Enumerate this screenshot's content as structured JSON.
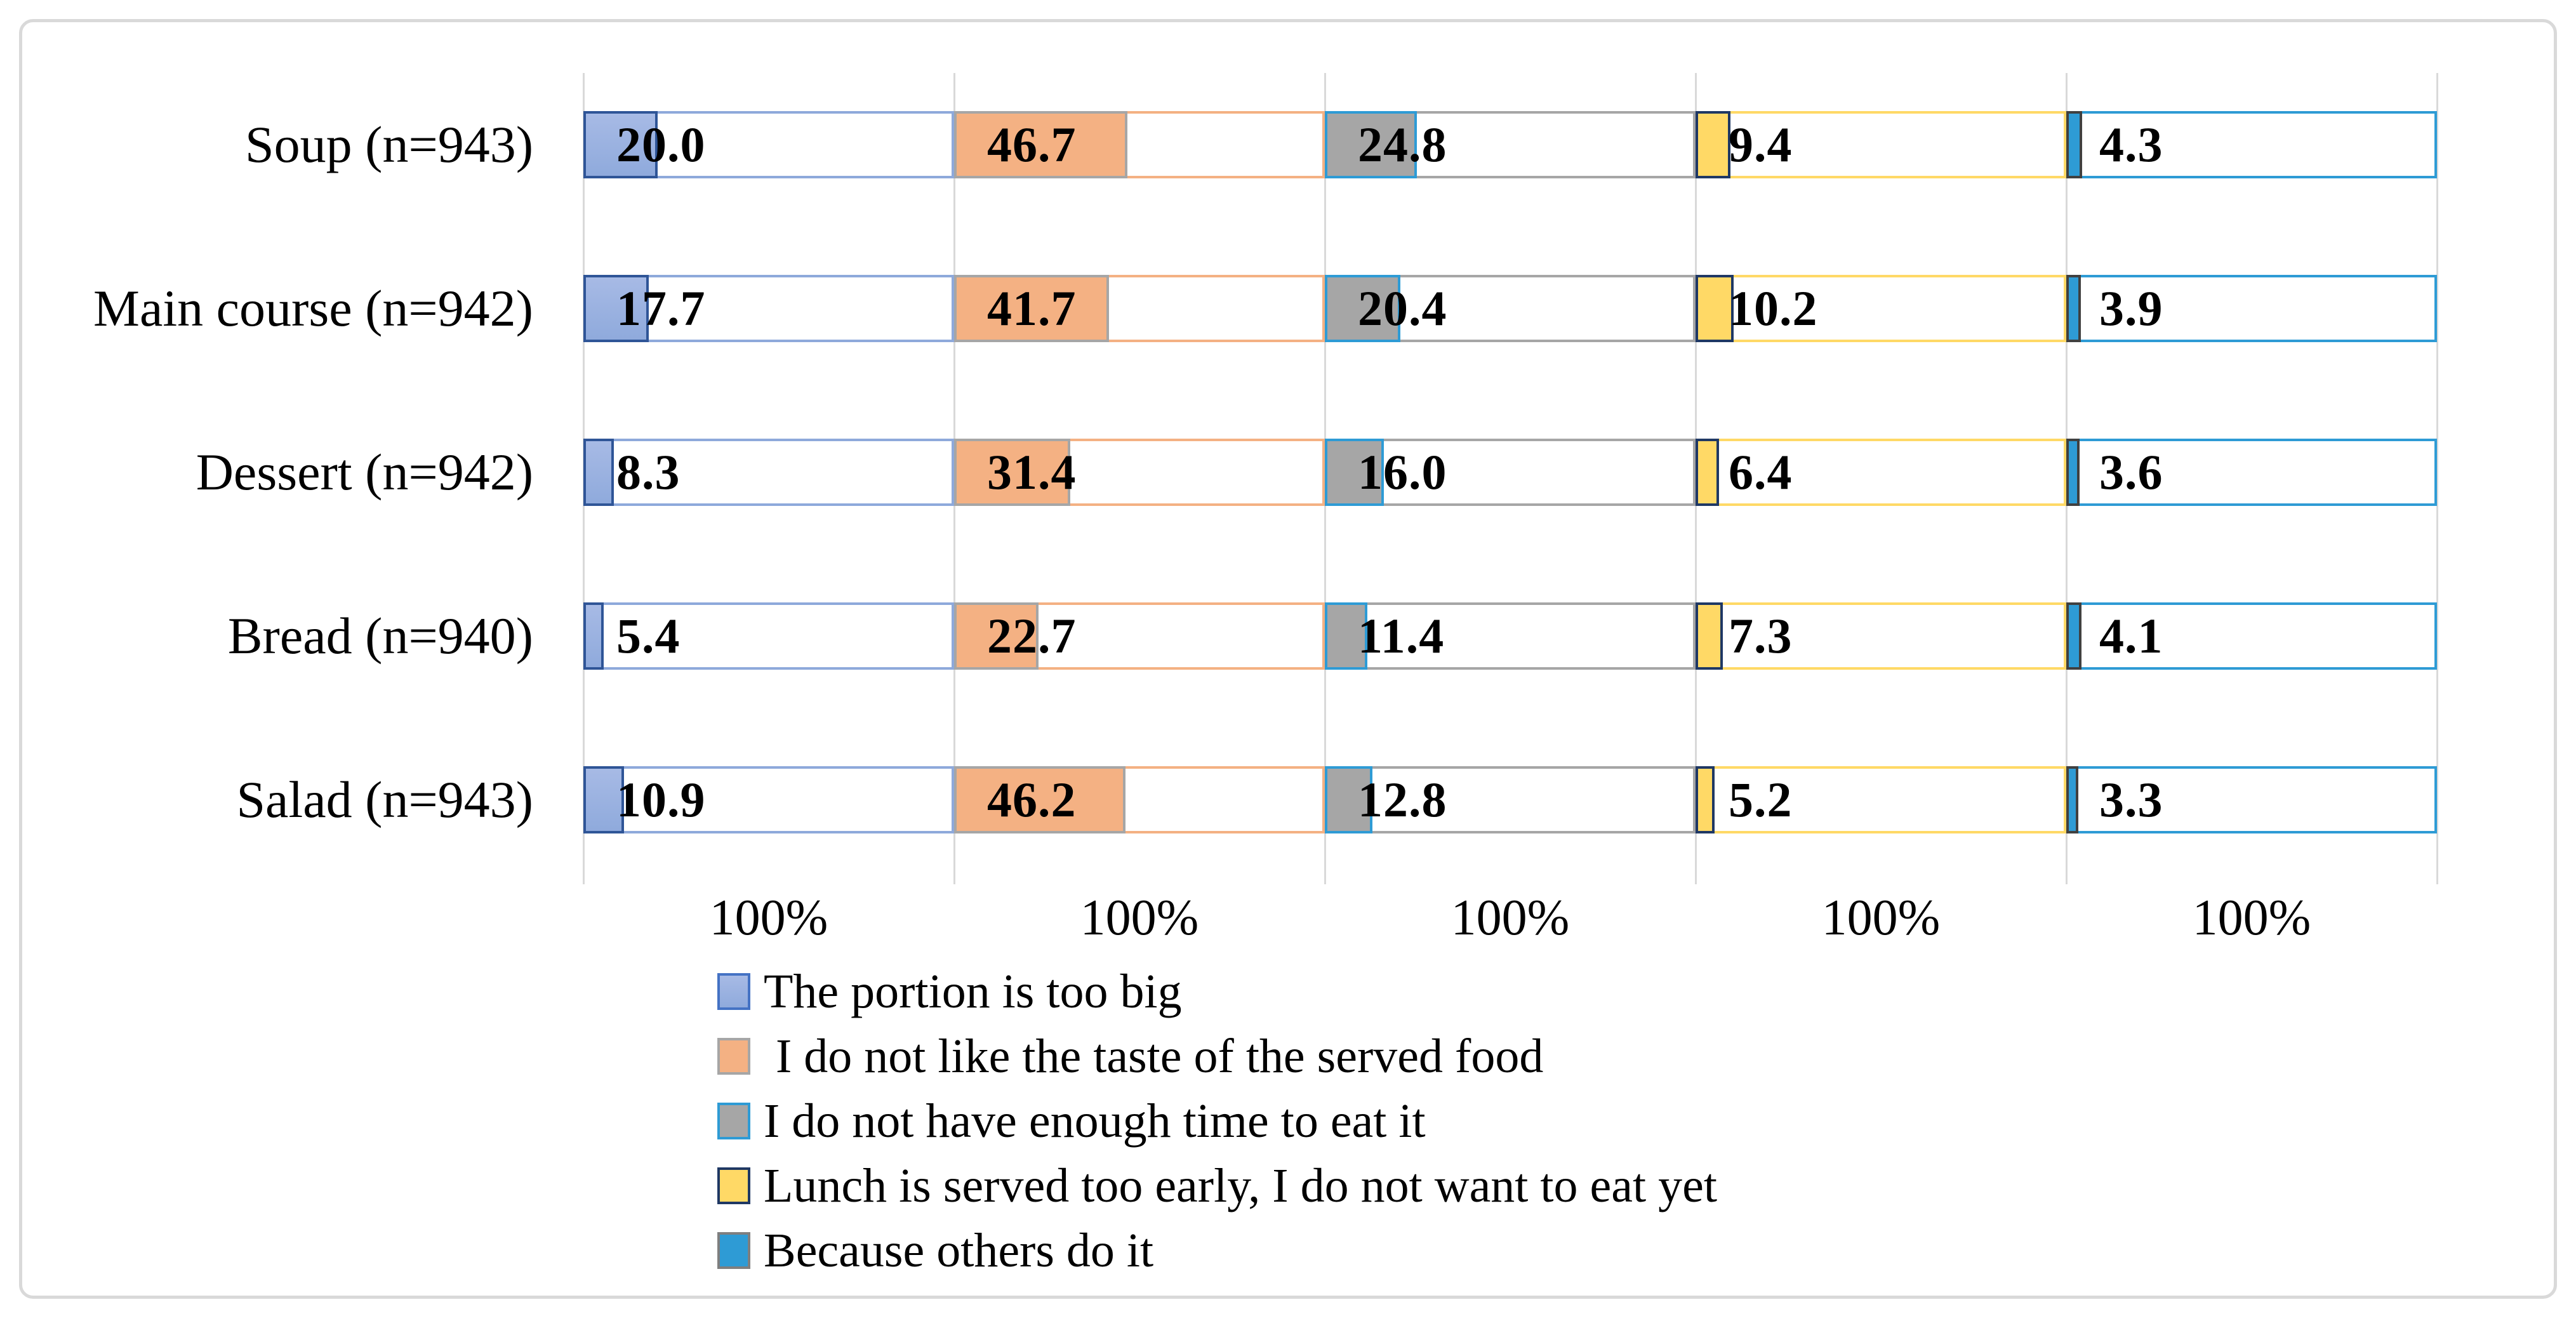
{
  "figure": {
    "background": "#FFFFFF",
    "frame_border_color": "#D9D9D9"
  },
  "chart_data": {
    "type": "bar",
    "orientation": "horizontal",
    "layout": "small-multiples: one 0-100% axis segment per reason, value bar filled from segment start, remainder shown as white outlined track",
    "title": "",
    "categories": [
      "Soup (n=943)",
      "Main course (n=942)",
      "Dessert (n=942)",
      "Bread (n=940)",
      "Salad (n=943)"
    ],
    "series": [
      {
        "name": "The portion is too big",
        "values": [
          20.0,
          17.7,
          8.3,
          5.4,
          10.9
        ],
        "fill": "#8FAADC",
        "fill_top": "#A7BAE5",
        "fill_border": "#2F5597",
        "track_border": "#8EA9DB",
        "legend_border": "#4472C4"
      },
      {
        "name": " I do not like the taste of the served food",
        "values": [
          46.7,
          41.7,
          31.4,
          22.7,
          46.2
        ],
        "fill": "#F4B183",
        "fill_border": "#A6A6A6",
        "track_border": "#F4B183",
        "legend_border": "#A6A6A6"
      },
      {
        "name": "I do not have enough time to eat it",
        "values": [
          24.8,
          20.4,
          16.0,
          11.4,
          12.8
        ],
        "fill": "#A6A6A6",
        "fill_border": "#2E9BD5",
        "track_border": "#A6A6A6",
        "legend_border": "#2E9BD5"
      },
      {
        "name": "Lunch is served too early, I do not want to eat yet",
        "values": [
          9.4,
          10.2,
          6.4,
          7.3,
          5.2
        ],
        "fill": "#FFD966",
        "fill_border": "#1F3864",
        "track_border": "#FFD966",
        "legend_border": "#1F3864"
      },
      {
        "name": "Because others do it",
        "values": [
          4.3,
          3.9,
          3.6,
          4.1,
          3.3
        ],
        "fill": "#2E9BD5",
        "fill_border": "#404040",
        "track_border": "#2E9BD5",
        "legend_border": "#7F7F7F"
      }
    ],
    "x_axis": {
      "tick_label": "100%",
      "min": 0,
      "max": 100,
      "tick_repeated_per_panel": true
    },
    "value_label_format": "one decimal place, black bold, near left edge of each segment",
    "gridline_color": "#D9D9D9",
    "legend_position": "bottom, single left-aligned column"
  }
}
